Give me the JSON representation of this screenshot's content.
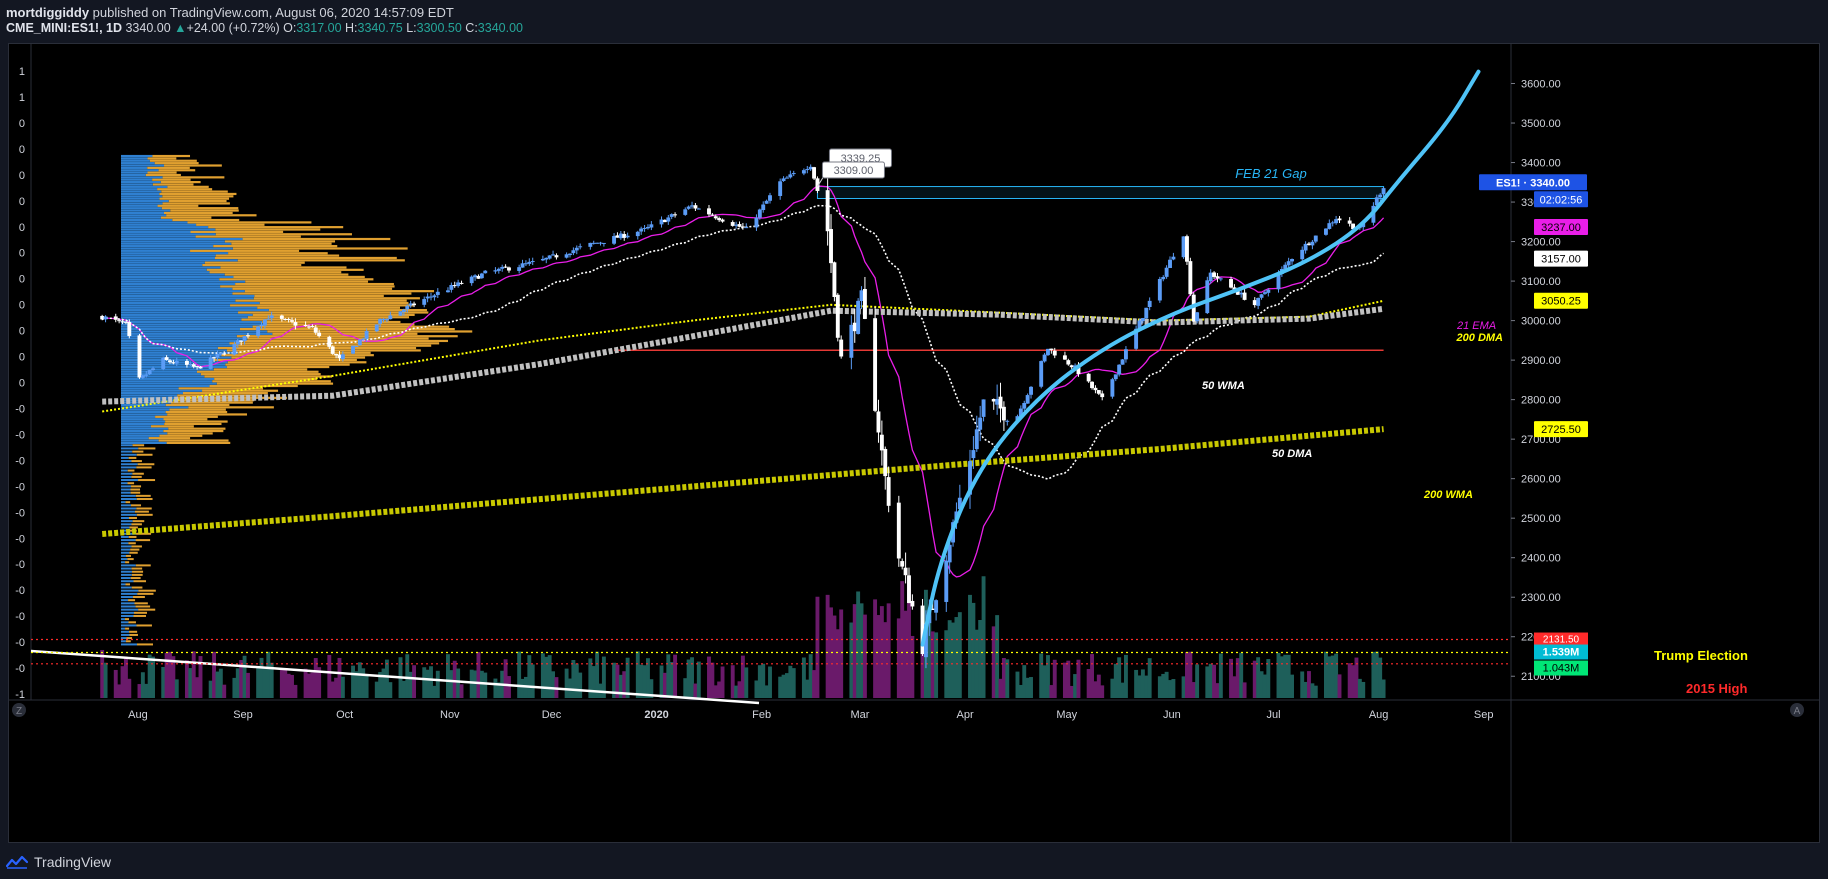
{
  "header": {
    "author": "mortdiggiddy",
    "published": " published on TradingView.com, August 06, 2020 14:57:09 EDT",
    "symbol": "CME_MINI:ES1!, 1D",
    "last": "3340.00",
    "change_arrow": "▲",
    "change": "+24.00 (+0.72%)",
    "o_label": "O:",
    "o_val": "3317.00",
    "h_label": "H:",
    "h_val": "3340.75",
    "l_label": "L:",
    "l_val": "3300.50",
    "c_label": "C:",
    "c_val": "3340.00"
  },
  "footer": {
    "brand": "TradingView"
  },
  "chart_data": {
    "type": "candlestick",
    "x_axis": {
      "labels": [
        "Aug",
        "Sep",
        "Oct",
        "Nov",
        "Dec",
        "2020",
        "Feb",
        "Mar",
        "Apr",
        "May",
        "Jun",
        "Jul",
        "Aug",
        "Sep"
      ]
    },
    "y_axis": {
      "ticks": [
        2100,
        2200,
        2300,
        2400,
        2500,
        2600,
        2700,
        2800,
        2900,
        3000,
        3100,
        3200,
        3300,
        3400,
        3500,
        3600
      ],
      "tick_labels": [
        "2100.00",
        "2200.00",
        "2300.00",
        "2400.00",
        "2500.00",
        "2600.00",
        "2700.00",
        "2800.00",
        "2900.00",
        "3000.00",
        "3100.00",
        "3200.00",
        "3300.00",
        "3400.00",
        "3500.00",
        "3600.00"
      ],
      "range": [
        2050,
        3700
      ]
    },
    "left_axis_labels": [
      "1",
      "1",
      "0",
      "0",
      "0",
      "0",
      "0",
      "0",
      "0",
      "0",
      "0",
      "0",
      "0",
      "-0",
      "-0",
      "-0",
      "-0",
      "-0",
      "-0",
      "-0",
      "-0",
      "-0",
      "-0",
      "-0",
      "-1"
    ],
    "price_path": [
      [
        "2019-07-25",
        3010
      ],
      [
        "2019-08-01",
        2990
      ],
      [
        "2019-08-05",
        2850
      ],
      [
        "2019-08-12",
        2900
      ],
      [
        "2019-08-22",
        2880
      ],
      [
        "2019-09-01",
        2930
      ],
      [
        "2019-09-12",
        3010
      ],
      [
        "2019-09-25",
        2980
      ],
      [
        "2019-10-03",
        2900
      ],
      [
        "2019-10-15",
        3000
      ],
      [
        "2019-11-01",
        3070
      ],
      [
        "2019-11-15",
        3120
      ],
      [
        "2019-12-01",
        3150
      ],
      [
        "2019-12-15",
        3190
      ],
      [
        "2020-01-01",
        3230
      ],
      [
        "2020-01-15",
        3290
      ],
      [
        "2020-01-31",
        3230
      ],
      [
        "2020-02-10",
        3350
      ],
      [
        "2020-02-19",
        3395
      ],
      [
        "2020-02-24",
        3230
      ],
      [
        "2020-02-28",
        2900
      ],
      [
        "2020-03-05",
        3050
      ],
      [
        "2020-03-12",
        2600
      ],
      [
        "2020-03-16",
        2400
      ],
      [
        "2020-03-23",
        2180
      ],
      [
        "2020-04-01",
        2480
      ],
      [
        "2020-04-10",
        2790
      ],
      [
        "2020-04-20",
        2760
      ],
      [
        "2020-04-29",
        2930
      ],
      [
        "2020-05-07",
        2880
      ],
      [
        "2020-05-15",
        2800
      ],
      [
        "2020-05-28",
        3030
      ],
      [
        "2020-06-08",
        3220
      ],
      [
        "2020-06-11",
        3000
      ],
      [
        "2020-06-16",
        3120
      ],
      [
        "2020-06-29",
        3040
      ],
      [
        "2020-07-10",
        3160
      ],
      [
        "2020-07-23",
        3260
      ],
      [
        "2020-07-30",
        3230
      ],
      [
        "2020-08-06",
        3340
      ]
    ],
    "price_labels": [
      {
        "text": "ES1! · 3340.00",
        "value": 3340,
        "color": "#1e53e5"
      },
      {
        "text": "02:02:56",
        "value": 3318,
        "color": "#1e53e5"
      },
      {
        "text": "3237.00",
        "value": 3237,
        "color": "#e91ee8"
      },
      {
        "text": "3157.00",
        "value": 3157,
        "color": "#ffffff"
      },
      {
        "text": "3050.25",
        "value": 3050.25,
        "color": "#ffff00"
      },
      {
        "text": "2725.50",
        "value": 2725.5,
        "color": "#ffff00"
      }
    ],
    "volume_labels": [
      "1.539M",
      "1.043M"
    ],
    "annotations": [
      {
        "text": "FEB 21 Gap"
      },
      {
        "text": "3339.25"
      },
      {
        "text": "3309.00"
      },
      {
        "text": "50 WMA"
      },
      {
        "text": "50 DMA"
      },
      {
        "text": "21 EMA"
      },
      {
        "text": "200 DMA"
      },
      {
        "text": "200 WMA"
      },
      {
        "text": "Trump Election"
      },
      {
        "text": "2015 High"
      },
      {
        "text": "2131.50"
      }
    ],
    "levels": {
      "feb21_gap": [
        3309,
        3339.25
      ],
      "red_line": 2925,
      "trump_election": 2160,
      "2015_high": 2131.5
    },
    "colors": {
      "candle_up": "#5b9cf6",
      "candle_down": "#ffffff",
      "ema21": "#e91ee8",
      "dma50": "#ffffff",
      "dma200": "#ffff00",
      "wma50": "#c0c0c0",
      "wma200": "#c8c800",
      "curve": "#4fc3f7",
      "gap": "#29b6f6",
      "vp_up": "#2f80d1",
      "vp_down": "#e0a030",
      "vol_up": "#1e5f5a",
      "vol_down": "#6a1a6a"
    }
  }
}
